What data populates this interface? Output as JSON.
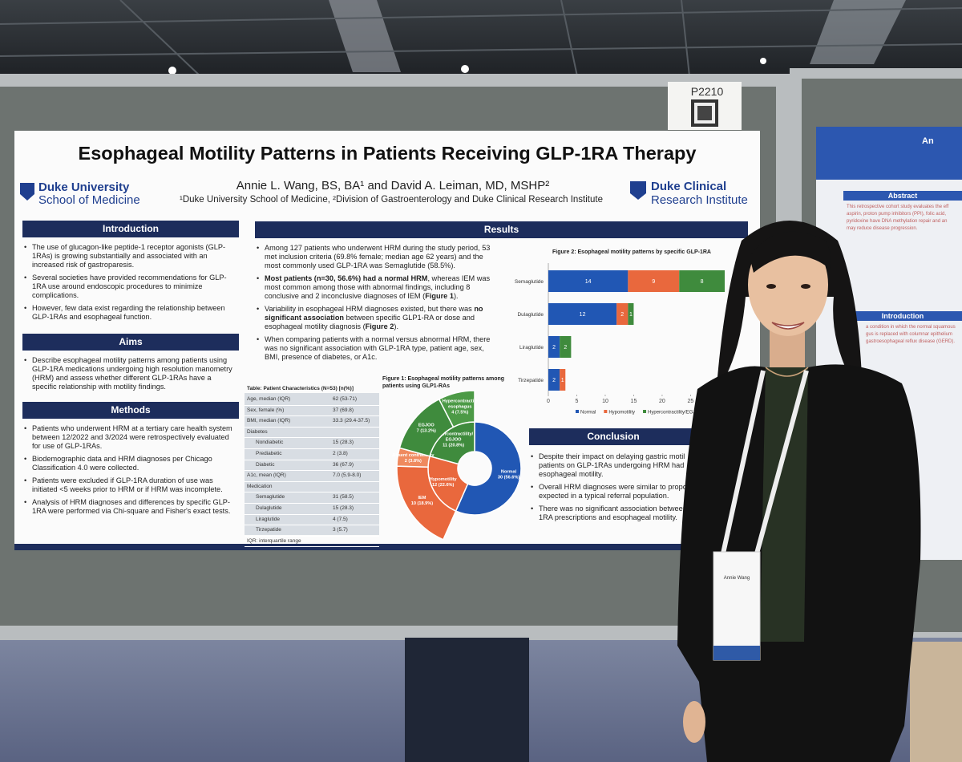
{
  "booth": "P2210",
  "poster": {
    "title": "Esophageal Motility Patterns in Patients Receiving GLP-1RA Therapy",
    "authors": "Annie L. Wang, BS, BA¹ and David A. Leiman, MD, MSHP²",
    "affiliations": "¹Duke University School of Medicine, ²Division of Gastroenterology and Duke Clinical Research Institute",
    "logo_left": [
      "Duke University",
      "School of Medicine"
    ],
    "logo_right": [
      "Duke Clinical",
      "Research Institute"
    ],
    "introduction": {
      "heading": "Introduction",
      "bullets": [
        "The use of glucagon-like peptide-1 receptor agonists (GLP-1RAs) is growing substantially and associated with an increased risk of gastroparesis.",
        "Several societies have provided recommendations for GLP-1RA use around endoscopic procedures to minimize complications.",
        "However, few data exist regarding the relationship between GLP-1RAs and esophageal function."
      ]
    },
    "aims": {
      "heading": "Aims",
      "bullets": [
        "Describe esophageal motility patterns among patients using GLP-1RA medications undergoing high resolution manometry (HRM) and assess whether different GLP-1RAs have a specific relationship with motility findings."
      ]
    },
    "methods": {
      "heading": "Methods",
      "bullets": [
        "Patients who underwent HRM at a tertiary care health system between 12/2022 and 3/2024 were retrospectively evaluated for use of GLP-1RAs.",
        "Biodemographic data and HRM diagnoses per Chicago Classification 4.0 were collected.",
        "Patients were excluded if GLP-1RA duration of use was initiated <5 weeks prior to HRM or if HRM was incomplete.",
        "Analysis of HRM diagnoses and differences by specific GLP-1RA were performed via Chi-square and Fisher's exact tests."
      ]
    },
    "results": {
      "heading": "Results",
      "bullets": [
        [
          {
            "text": "Among 127 patients who underwent HRM during the study period, 53 met inclusion criteria (69.8% female; median age 62 years) and the most commonly used GLP-1RA was Semaglutide (58.5%).",
            "bold": false
          }
        ],
        [
          {
            "text": "Most patients (n=30, 56.6%) had a normal HRM",
            "bold": true
          },
          {
            "text": ", whereas IEM was most common among those with abnormal findings, including 8 conclusive and 2 inconclusive diagnoses of IEM (",
            "bold": false
          },
          {
            "text": "Figure 1",
            "bold": true
          },
          {
            "text": ").",
            "bold": false
          }
        ],
        [
          {
            "text": "Variability in esophageal HRM diagnoses existed, but there was ",
            "bold": false
          },
          {
            "text": "no significant association",
            "bold": true
          },
          {
            "text": " between specific GLP1-RA or dose and esophageal motility diagnosis (",
            "bold": false
          },
          {
            "text": "Figure 2",
            "bold": true
          },
          {
            "text": ").",
            "bold": false
          }
        ],
        [
          {
            "text": "When comparing patients with a normal versus abnormal HRM, there was no significant association with GLP-1RA type, patient age, sex, BMI, presence of diabetes, or A1c.",
            "bold": false
          }
        ]
      ]
    },
    "table": {
      "title": "Table: Patient Characteristics (N=53) [n(%)]",
      "rows": [
        {
          "label": "Age, median (IQR)",
          "value": "62 (53-71)"
        },
        {
          "label": "Sex, female (%)",
          "value": "37 (69.8)"
        },
        {
          "label": "BMI, median (IQR)",
          "value": "33.3 (29.4-37.5)"
        },
        {
          "label": "Diabetes",
          "sub": [
            {
              "label": "Nondiabetic",
              "value": "15 (28.3)"
            },
            {
              "label": "Prediabetic",
              "value": "2 (3.8)"
            },
            {
              "label": "Diabetic",
              "value": "36 (67.9)"
            }
          ]
        },
        {
          "label": "A1c, mean (IQR)",
          "value": "7.0 (5.9-8.0)"
        },
        {
          "label": "Medication",
          "sub": [
            {
              "label": "Semaglutide",
              "value": "31 (58.5)"
            },
            {
              "label": "Dulaglutide",
              "value": "15 (28.3)"
            },
            {
              "label": "Liraglutide",
              "value": "4 (7.5)"
            },
            {
              "label": "Tirzepatide",
              "value": "3 (5.7)"
            }
          ]
        }
      ],
      "footnote": "IQR: interquartile range"
    },
    "figure1": {
      "type": "sunburst",
      "title": "Figure 1: Esophageal motility patterns among patients using GLP1-RAs",
      "inner": [
        {
          "label_lines": [
            "Normal",
            "30 (56.6%)"
          ],
          "value": 30,
          "color": "#2157b4"
        },
        {
          "label_lines": [
            "Hypomotility",
            "12 (22.6%)"
          ],
          "value": 12,
          "color": "#e9683d"
        },
        {
          "label_lines": [
            "Hypercontractility/",
            "EGJOO",
            "11 (20.8%)"
          ],
          "value": 11,
          "color": "#3f8b3d"
        }
      ],
      "outer": [
        {
          "label_lines": [
            "IEM",
            "10 (18.9%)"
          ],
          "value": 10,
          "color": "#e9683d"
        },
        {
          "label_lines": [
            "Absent contractility",
            "2 (3.8%)"
          ],
          "value": 2,
          "color": "#ef8a5f"
        },
        {
          "label_lines": [
            "EGJOO",
            "7 (13.2%)"
          ],
          "value": 7,
          "color": "#3f8b3d"
        },
        {
          "label_lines": [
            "Hypercontractile",
            "esophagus",
            "4 (7.5%)"
          ],
          "value": 4,
          "color": "#4c9a46"
        }
      ]
    },
    "figure2": {
      "type": "bar",
      "orientation": "horizontal",
      "stacked": true,
      "title": "Figure 2: Esophageal motility patterns by specific GLP-1RA",
      "categories": [
        "Semaglutide",
        "Dulaglutide",
        "Liraglutide",
        "Tirzepatide"
      ],
      "series": [
        {
          "name": "Normal",
          "color": "#2157b4",
          "values": [
            14,
            12,
            2,
            2
          ]
        },
        {
          "name": "Hypomotility",
          "color": "#e9683d",
          "values": [
            9,
            2,
            0,
            1
          ]
        },
        {
          "name": "Hypercontractility/EGJOO",
          "color": "#3f8b3d",
          "values": [
            8,
            1,
            2,
            0
          ]
        }
      ],
      "xlim": [
        0,
        31
      ],
      "xticks": [
        0,
        5,
        10,
        15,
        20,
        25
      ]
    },
    "conclusion": {
      "heading": "Conclusion",
      "bullets": [
        [
          "Despite their impact on delaying gastric motil",
          "patients on GLP-1RAs undergoing HRM had",
          "esophageal motility."
        ],
        [
          "Overall HRM diagnoses were similar to propo",
          "expected in a typical referral population."
        ],
        [
          "There was no significant association between",
          "1RA prescriptions and esophageal motility."
        ]
      ]
    }
  },
  "neighbor_poster": {
    "title": "An",
    "abstract_heading": "Abstract",
    "abstract_lines": [
      "This retrospective cohort study evaluates the eff",
      "aspirin, proton pump inhibitors (PPI), folic acid,",
      "pyridoxine have DNA methylation repair and an",
      "may reduce disease progression."
    ],
    "intro_heading": "Introduction",
    "intro_lines": [
      "a condition in which the normal squamous",
      "gus is replaced with columnar epithelium",
      "gastroesophageal reflux disease (GERD)."
    ]
  },
  "badge": {
    "name": "Annie Wang"
  }
}
